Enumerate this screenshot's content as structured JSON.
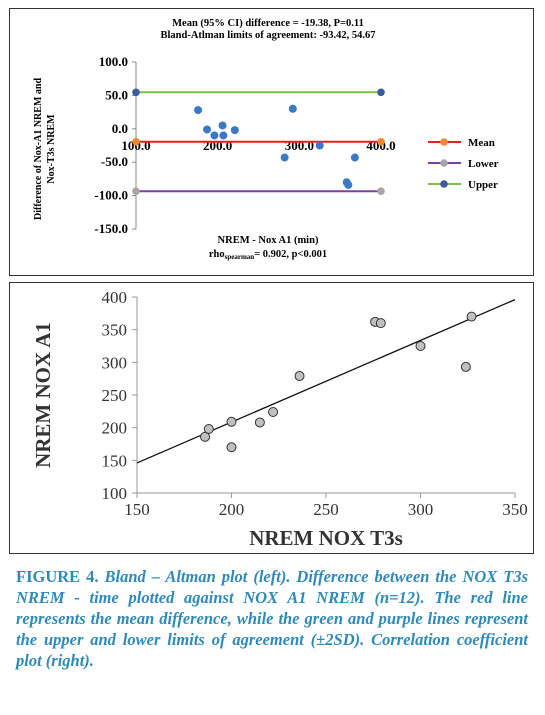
{
  "figure_caption": {
    "label": "FIGURE 4.",
    "text": "Bland – Altman plot (left). Difference between the NOX T3s NREM - time plotted against NOX A1 NREM (n=12). The red line represents the mean difference, while the green and purple lines represent the upper and lower limits of agreement (±2SD). Correlation coefficient plot (right)."
  },
  "chart_data": [
    {
      "type": "scatter",
      "title": "Mean (95% CI) difference = -19.38, P=0.11",
      "subtitle": "Bland-Atlman limits of agreement: -93.42, 54.67",
      "xlabel": "NREM - Nox A1 (min)",
      "stats_note_prefix": "rho",
      "stats_note_sub": "spearman",
      "stats_note_suffix": "= 0.902, p<0.001",
      "ylabel_line1": "Difference of Nox-A1 NREM and",
      "ylabel_line2": "Nox-T3s NREM",
      "xlim": [
        100,
        400
      ],
      "ylim": [
        -150,
        100
      ],
      "xticks": [
        "100.0",
        "200.0",
        "300.0",
        "400.0"
      ],
      "xtick_values": [
        100,
        200,
        300,
        400
      ],
      "yticks": [
        "100.0",
        "50.0",
        "0.0",
        "-50.0",
        "-100.0",
        "-150.0"
      ],
      "ytick_values": [
        100,
        50,
        0,
        -50,
        -100,
        -150
      ],
      "points": [
        {
          "x": 176,
          "y": 28
        },
        {
          "x": 187,
          "y": -1
        },
        {
          "x": 196,
          "y": -10
        },
        {
          "x": 206,
          "y": 5
        },
        {
          "x": 207,
          "y": -10
        },
        {
          "x": 221,
          "y": -2
        },
        {
          "x": 282,
          "y": -43
        },
        {
          "x": 292,
          "y": 30
        },
        {
          "x": 325,
          "y": -25
        },
        {
          "x": 358,
          "y": -80
        },
        {
          "x": 360,
          "y": -84
        },
        {
          "x": 368,
          "y": -43
        }
      ],
      "lines": [
        {
          "name": "Mean",
          "value": -19.38,
          "color": "#e8201a",
          "marker_color": "#f2872f"
        },
        {
          "name": "Lower",
          "value": -93.42,
          "color": "#7b3fa8",
          "marker_color": "#a6a6a6"
        },
        {
          "name": "Upper",
          "value": 54.67,
          "color": "#7cc242",
          "marker_color": "#3a5d9c"
        }
      ],
      "point_color": "#3c78c8",
      "legend_position": "right"
    },
    {
      "type": "scatter",
      "xlabel": "NREM NOX T3s",
      "ylabel": "NREM NOX A1",
      "xlim": [
        150,
        350
      ],
      "ylim": [
        100,
        400
      ],
      "xticks": [
        "150",
        "200",
        "250",
        "300",
        "350"
      ],
      "xtick_values": [
        150,
        200,
        250,
        300,
        350
      ],
      "yticks": [
        "400",
        "350",
        "300",
        "250",
        "200",
        "150",
        "100"
      ],
      "ytick_values": [
        400,
        350,
        300,
        250,
        200,
        150,
        100
      ],
      "points": [
        {
          "x": 186,
          "y": 186
        },
        {
          "x": 188,
          "y": 198
        },
        {
          "x": 200,
          "y": 209
        },
        {
          "x": 200,
          "y": 170
        },
        {
          "x": 215,
          "y": 208
        },
        {
          "x": 222,
          "y": 224
        },
        {
          "x": 236,
          "y": 279
        },
        {
          "x": 276,
          "y": 362
        },
        {
          "x": 279,
          "y": 360
        },
        {
          "x": 300,
          "y": 325
        },
        {
          "x": 324,
          "y": 293
        },
        {
          "x": 327,
          "y": 370
        }
      ],
      "trendline": {
        "x": [
          150,
          350
        ],
        "y": [
          146,
          396
        ]
      },
      "point_fill": "#c0c0c0",
      "point_stroke": "#333333",
      "grid": false
    }
  ]
}
